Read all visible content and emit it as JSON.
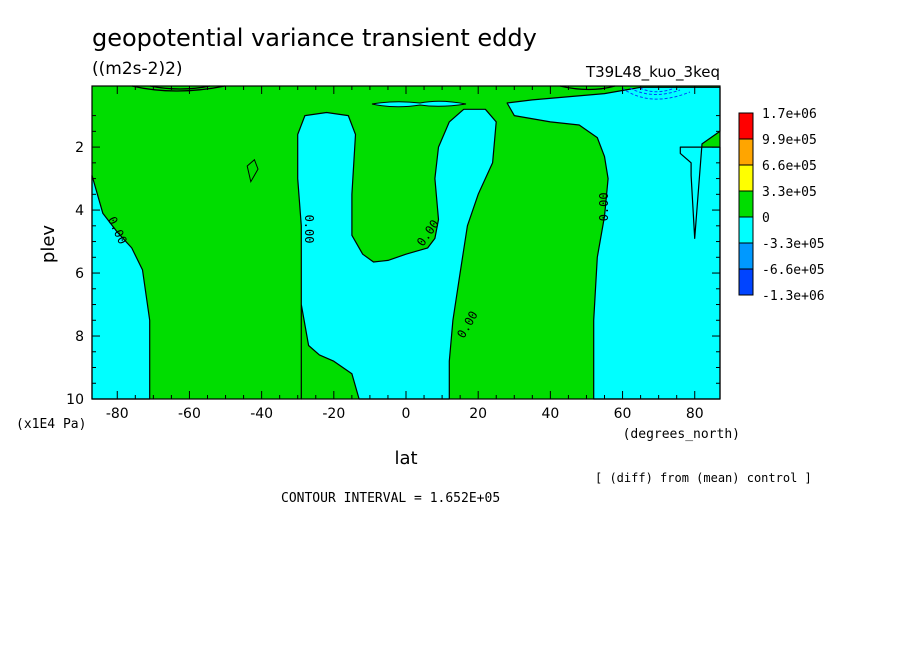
{
  "chart_data": {
    "type": "contour",
    "title": "geopotential variance transient eddy",
    "units": "((m2s-2)2)",
    "run_label": "T39L48_kuo_3keq",
    "xlabel": "lat",
    "xunits": "(degrees_north)",
    "ylabel": "plev",
    "yunits": "(x1E4 Pa)",
    "xlim": [
      -87,
      87
    ],
    "ylim": [
      0.06,
      10
    ],
    "y_inverted": true,
    "x_ticks": [
      -80,
      -60,
      -40,
      -20,
      0,
      20,
      40,
      60,
      80
    ],
    "x_tick_labels": [
      "-80",
      "-60",
      "-40",
      "-20",
      "0",
      "20",
      "40",
      "60",
      "80"
    ],
    "y_ticks": [
      2,
      4,
      6,
      8,
      10
    ],
    "y_tick_labels": [
      "2",
      "4",
      "6",
      "8",
      "10"
    ],
    "contour_labels": [
      "0.00",
      "0.00",
      "0.00",
      "0.00",
      "0.00"
    ],
    "contour_interval_text": "CONTOUR INTERVAL = 1.652E+05",
    "note": "[ (diff) from (mean) control ]",
    "colorbar": {
      "labels": [
        "1.7e+06",
        "9.9e+05",
        "6.6e+05",
        "3.3e+05",
        "0",
        "-3.3e+05",
        "-6.6e+05",
        "-1.3e+06"
      ],
      "colors": [
        "#ff0000",
        "#ffa500",
        "#ffff00",
        "#00dd00",
        "#00ffff",
        "#0099ff",
        "#0044ff"
      ]
    },
    "regions": [
      {
        "sign": "negative",
        "color": "#00ffff",
        "boundary_latlev": [
          [
            -87,
            2.9
          ],
          [
            -84,
            4.1
          ],
          [
            -80,
            4.7
          ],
          [
            -76,
            5.2
          ],
          [
            -73,
            5.9
          ],
          [
            -71,
            7.5
          ],
          [
            -71,
            10
          ],
          [
            -87,
            10
          ]
        ]
      },
      {
        "sign": "negative",
        "color": "#00ffff",
        "boundary_latlev": [
          [
            -29,
            10
          ],
          [
            -29,
            4.5
          ],
          [
            -30,
            3
          ],
          [
            -30,
            1.6
          ],
          [
            -28,
            1.0
          ],
          [
            -22,
            0.9
          ],
          [
            -16,
            1.0
          ],
          [
            -14,
            1.6
          ],
          [
            -15,
            3.5
          ],
          [
            -15,
            4.8
          ],
          [
            -12,
            5.4
          ],
          [
            -9,
            5.65
          ],
          [
            -5,
            5.6
          ],
          [
            0,
            5.4
          ],
          [
            6,
            5.2
          ],
          [
            8,
            4.9
          ],
          [
            9,
            4.3
          ],
          [
            8,
            3
          ],
          [
            9,
            2
          ],
          [
            12,
            1.2
          ],
          [
            16,
            0.8
          ],
          [
            22,
            0.8
          ],
          [
            25,
            1.2
          ],
          [
            24,
            2.5
          ],
          [
            20,
            3.5
          ],
          [
            17,
            4.5
          ],
          [
            15,
            6
          ],
          [
            13,
            7.5
          ],
          [
            12,
            8.8
          ],
          [
            12,
            10
          ],
          [
            -13,
            10
          ],
          [
            -15,
            9.2
          ],
          [
            -20,
            8.8
          ],
          [
            -24,
            8.6
          ],
          [
            -27,
            8.3
          ],
          [
            -29,
            7
          ]
        ]
      },
      {
        "sign": "negative",
        "color": "#00ffff",
        "boundary_latlev": [
          [
            52,
            10
          ],
          [
            52,
            7.5
          ],
          [
            53,
            5.5
          ],
          [
            55,
            4.2
          ],
          [
            56,
            3
          ],
          [
            55,
            2.3
          ],
          [
            53,
            1.7
          ],
          [
            48,
            1.3
          ],
          [
            40,
            1.2
          ],
          [
            30,
            1.0
          ],
          [
            28,
            0.6
          ],
          [
            35,
            0.5
          ],
          [
            55,
            0.3
          ],
          [
            65,
            0.1
          ],
          [
            87,
            0.1
          ],
          [
            87,
            1.5
          ],
          [
            82,
            1.9
          ],
          [
            80,
            4.9
          ],
          [
            79,
            2.9
          ],
          [
            79,
            2.5
          ],
          [
            76,
            2.2
          ],
          [
            76,
            2
          ],
          [
            87,
            2
          ],
          [
            87,
            10
          ]
        ]
      }
    ]
  }
}
